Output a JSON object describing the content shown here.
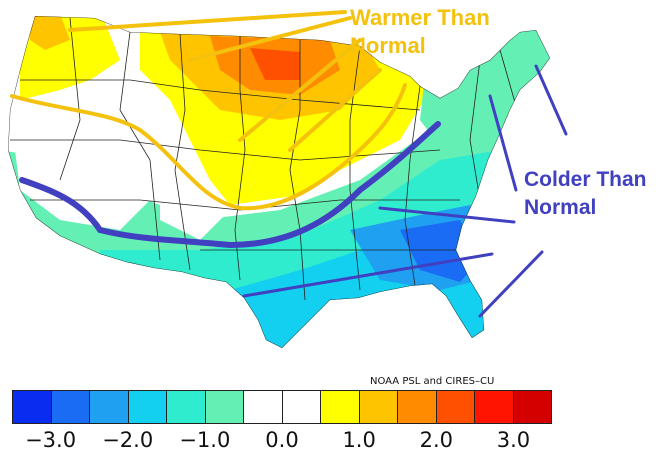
{
  "annotations": {
    "warm_line1": "Warmer Than",
    "warm_line2": "Normal",
    "cold_line1": "Colder Than",
    "cold_line2": "Normal"
  },
  "credit": "NOAA PSL and CIRES–CU",
  "legend": {
    "colors": [
      "#0a2cf0",
      "#1a6cf5",
      "#1fa0f0",
      "#14d0f0",
      "#30eccf",
      "#64f0b4",
      "#ffffff",
      "#ffffff",
      "#ffff00",
      "#ffc400",
      "#ff8c00",
      "#ff5000",
      "#ff1400",
      "#d40000"
    ],
    "ticks": [
      "−3.0",
      "−2.0",
      "−1.0",
      "0.0",
      "1.0",
      "2.0",
      "3.0"
    ]
  },
  "colors": {
    "warm_annotation": "#f4c20d",
    "cold_annotation": "#4040c0"
  }
}
